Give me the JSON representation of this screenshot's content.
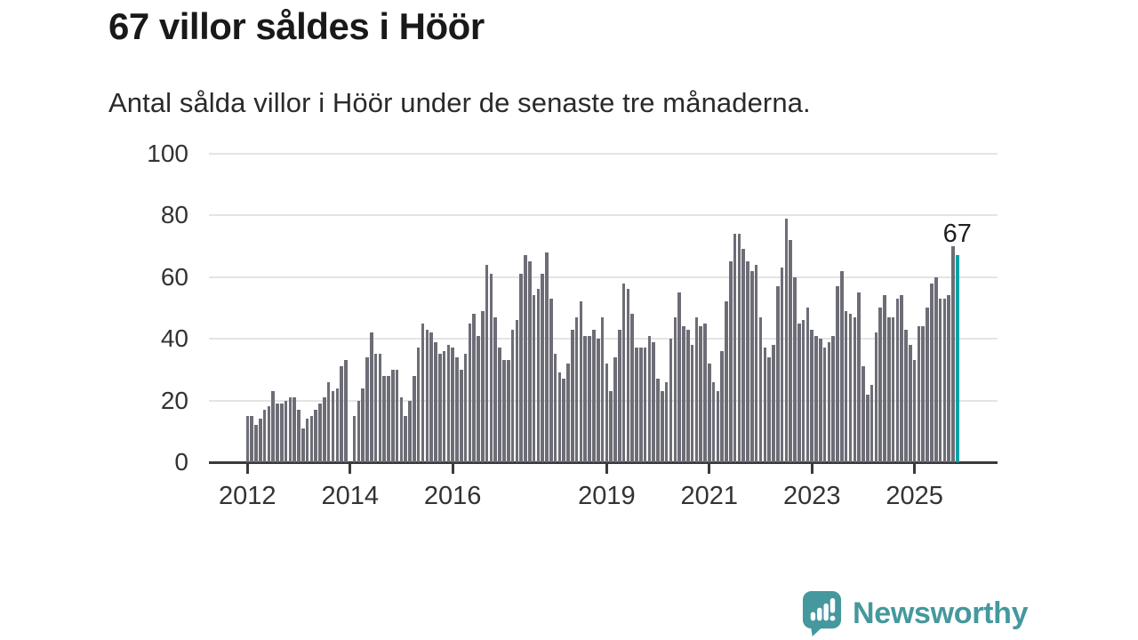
{
  "header": {
    "title": "67 villor såldes i Höör",
    "subtitle": "Antal sålda villor i Höör under de senaste tre månaderna."
  },
  "chart_data": {
    "type": "bar",
    "title": "67 villor såldes i Höör",
    "subtitle": "Antal sålda villor i Höör under de senaste tre månaderna.",
    "xlabel": "",
    "ylabel": "",
    "ylim": [
      0,
      100
    ],
    "yticks": [
      0,
      20,
      40,
      60,
      80,
      100
    ],
    "xticks": [
      "2012",
      "2014",
      "2016",
      "2019",
      "2021",
      "2023",
      "2025"
    ],
    "x_unit": "month",
    "x_start": "2012-01",
    "x_end": "2025-11",
    "grid": "horizontal",
    "legend": "none",
    "highlight_last": true,
    "annotation": {
      "label": "67",
      "target": "last-bar"
    },
    "values_by_year": {
      "2012": [
        15,
        15,
        12,
        14,
        17,
        18,
        23,
        19,
        19,
        20,
        21,
        21
      ],
      "2013": [
        17,
        11,
        14,
        15,
        17,
        19,
        21,
        26,
        23,
        24,
        31,
        33
      ],
      "2014": [
        null,
        15,
        20,
        24,
        34,
        42,
        35,
        35,
        28,
        28,
        30,
        30
      ],
      "2015": [
        21,
        15,
        20,
        28,
        37,
        45,
        43,
        42,
        39,
        35,
        36,
        38
      ],
      "2016": [
        37,
        34,
        30,
        35,
        45,
        48,
        41,
        49,
        64,
        61,
        47,
        37
      ],
      "2017": [
        33,
        33,
        43,
        46,
        61,
        67,
        65,
        54,
        56,
        61,
        68,
        53
      ],
      "2018": [
        35,
        29,
        27,
        32,
        43,
        47,
        52,
        41,
        41,
        43,
        40,
        47
      ],
      "2019": [
        32,
        23,
        34,
        43,
        58,
        56,
        48,
        37,
        37,
        37,
        41,
        39
      ],
      "2020": [
        27,
        23,
        26,
        40,
        47,
        55,
        44,
        43,
        38,
        47,
        44,
        45
      ],
      "2021": [
        32,
        26,
        23,
        36,
        52,
        65,
        74,
        74,
        69,
        65,
        62,
        64
      ],
      "2022": [
        47,
        37,
        34,
        38,
        57,
        63,
        79,
        72,
        60,
        45,
        46,
        50
      ],
      "2023": [
        43,
        41,
        40,
        37,
        39,
        41,
        57,
        62,
        49,
        48,
        47,
        55
      ],
      "2024": [
        31,
        22,
        25,
        42,
        50,
        54,
        47,
        47,
        53,
        54,
        43,
        38
      ],
      "2025": [
        33,
        44,
        44,
        50,
        58,
        60,
        53,
        53,
        54,
        70,
        67
      ]
    }
  },
  "colors": {
    "bar": "#6d6d77",
    "highlight": "#00a4a7",
    "grid": "#e4e4e4",
    "axis": "#3a3a3a",
    "tick_text": "#333333",
    "title_text": "#191919",
    "annotation_text": "#1f1f1f",
    "logo": "#45989d"
  },
  "logo": {
    "text": "Newsworthy",
    "icon": "newsworthy-chart-bubble-icon"
  }
}
